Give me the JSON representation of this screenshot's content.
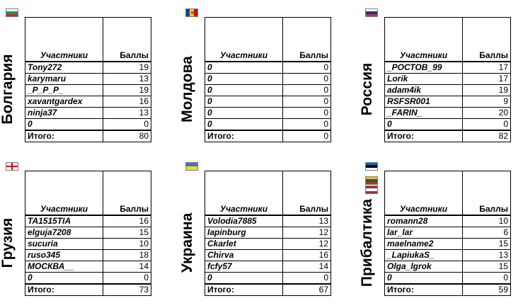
{
  "headers": {
    "participants": "Участники",
    "points": "Баллы",
    "total": "Итого:"
  },
  "panels": [
    {
      "country": "Болгария",
      "flag": [
        "#ffffff",
        "#00966e",
        "#d62612"
      ],
      "rows": [
        {
          "name": "Tony272",
          "points": "19"
        },
        {
          "name": "karymaru",
          "points": "13"
        },
        {
          "name": "_P_P_P_",
          "points": "19"
        },
        {
          "name": "xavantgardex",
          "points": "16"
        },
        {
          "name": "ninja37",
          "points": "13"
        },
        {
          "name": "0",
          "points": "0"
        }
      ],
      "total": "80"
    },
    {
      "country": "Молдова",
      "flag_vertical": [
        "#0046ae",
        "#ffd200",
        "#cc092f"
      ],
      "rows": [
        {
          "name": "0",
          "points": "0"
        },
        {
          "name": "0",
          "points": "0"
        },
        {
          "name": "0",
          "points": "0"
        },
        {
          "name": "0",
          "points": "0"
        },
        {
          "name": "0",
          "points": "0"
        },
        {
          "name": "0",
          "points": "0"
        }
      ],
      "total": "0"
    },
    {
      "country": "Россия",
      "flag": [
        "#ffffff",
        "#0039a6",
        "#d52b1e"
      ],
      "rows": [
        {
          "name": "_РОСТОВ_99",
          "points": "17"
        },
        {
          "name": "Lorik",
          "points": "17"
        },
        {
          "name": "adam4ik",
          "points": "19"
        },
        {
          "name": "RSFSR001",
          "points": "9"
        },
        {
          "name": "_FARIN_",
          "points": "20"
        },
        {
          "name": "0",
          "points": "0"
        }
      ],
      "total": "82"
    },
    {
      "country": "Грузия",
      "flag": [
        "#ffffff"
      ],
      "flag_cross": true,
      "rows": [
        {
          "name": "TA1515TIA",
          "points": "16"
        },
        {
          "name": "elguja7208",
          "points": "15"
        },
        {
          "name": "sucuria",
          "points": "10"
        },
        {
          "name": "ruso345",
          "points": "18"
        },
        {
          "name": "МОСКВА__",
          "points": "14"
        },
        {
          "name": "0",
          "points": "0"
        }
      ],
      "total": "73"
    },
    {
      "country": "Украина",
      "flag": [
        "#3a75c4",
        "#f9dd16"
      ],
      "rows": [
        {
          "name": "Volodia7885",
          "points": "13"
        },
        {
          "name": "lapinburg",
          "points": "12"
        },
        {
          "name": "Ckarlet",
          "points": "12"
        },
        {
          "name": "Chirva",
          "points": "16"
        },
        {
          "name": "fcfy57",
          "points": "14"
        },
        {
          "name": "0",
          "points": "0"
        }
      ],
      "total": "67"
    },
    {
      "country": "Прибалтика",
      "flags": [
        [
          "#0072ce",
          "#000000",
          "#ffffff"
        ],
        [
          "#fdb913",
          "#006a44",
          "#c1272d"
        ],
        [
          "#9e3039",
          "#ffffff",
          "#9e3039"
        ]
      ],
      "rows": [
        {
          "name": "romann28",
          "points": "10"
        },
        {
          "name": "lar_lar",
          "points": "6"
        },
        {
          "name": "maelname2",
          "points": "15"
        },
        {
          "name": "_LapiukaS_",
          "points": "13"
        },
        {
          "name": "Olga_lgrok",
          "points": "15"
        },
        {
          "name": "0",
          "points": "0"
        }
      ],
      "total": "59"
    }
  ]
}
